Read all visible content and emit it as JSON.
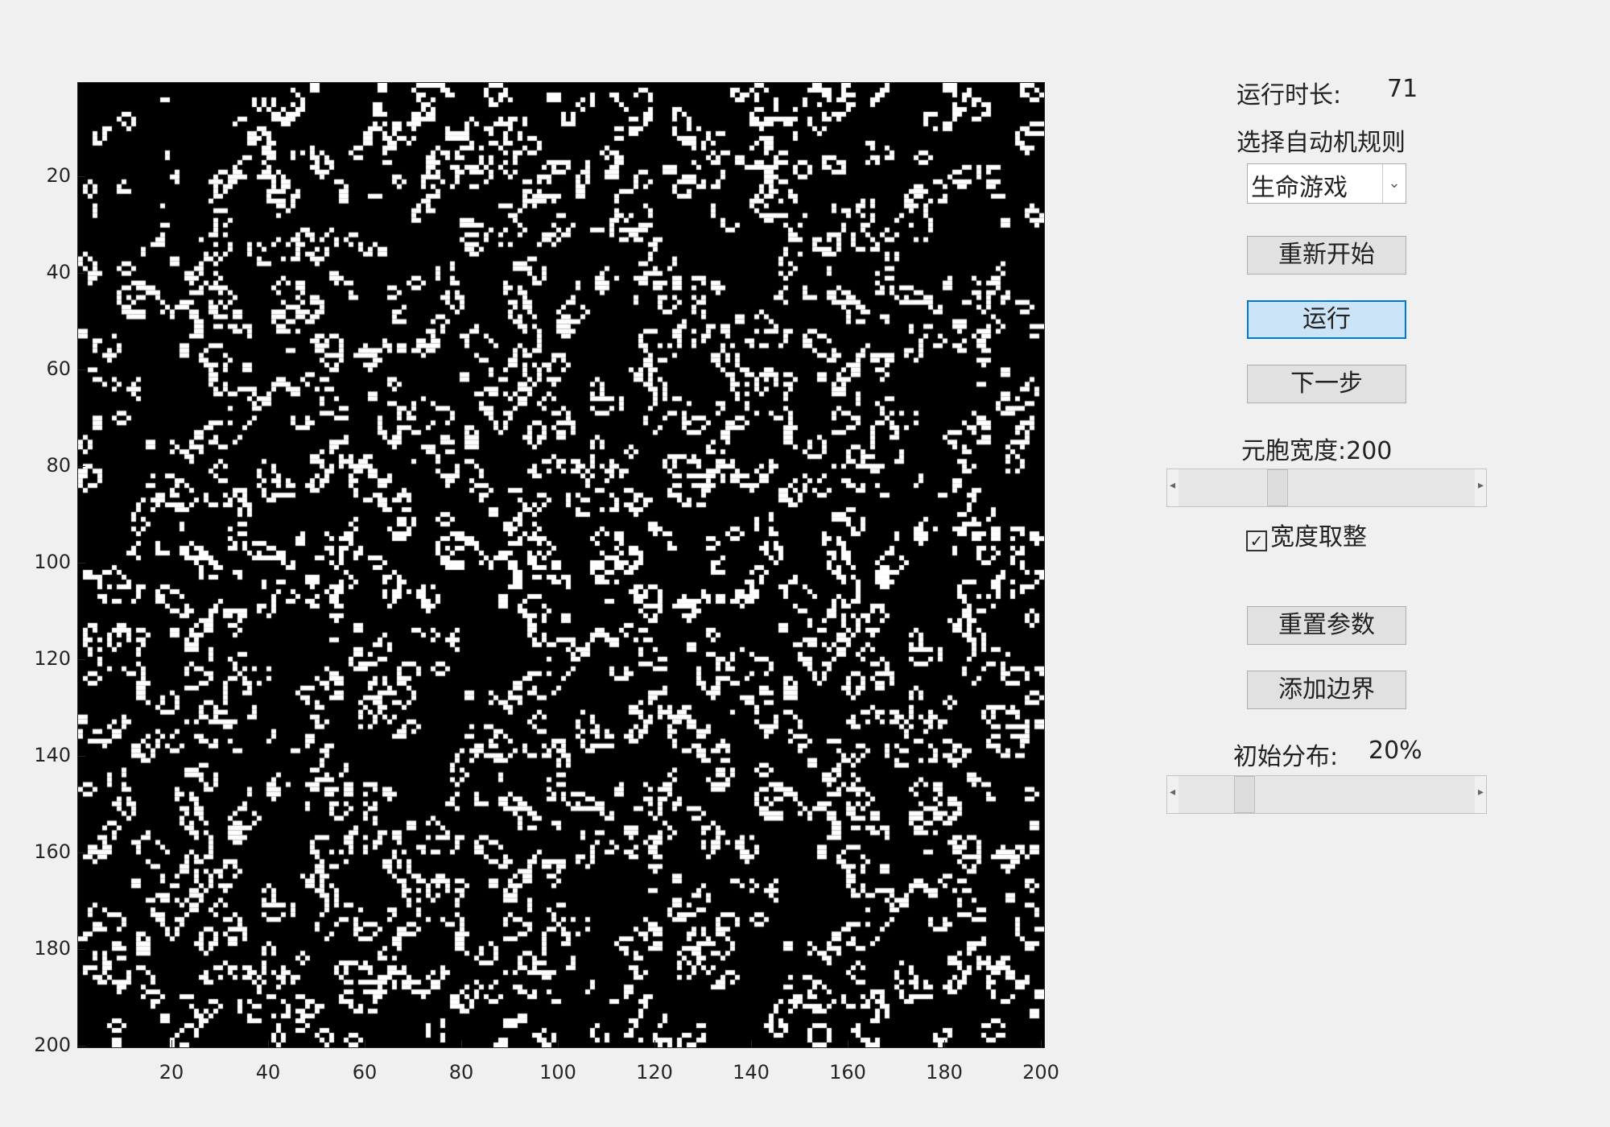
{
  "plot": {
    "y_ticks": [
      "20",
      "40",
      "60",
      "80",
      "100",
      "120",
      "140",
      "160",
      "180",
      "200"
    ],
    "x_ticks": [
      "20",
      "40",
      "60",
      "80",
      "100",
      "120",
      "140",
      "160",
      "180",
      "200"
    ],
    "grid_size": 200,
    "density": 0.2,
    "colors": {
      "alive": "#ffffff",
      "dead": "#000000"
    }
  },
  "panel": {
    "run_time_label": "运行时长:",
    "run_time_value": "71",
    "rule_label": "选择自动机规则",
    "rule_selected": "生命游戏",
    "restart_label": "重新开始",
    "run_label": "运行",
    "step_label": "下一步",
    "cell_width_label": "元胞宽度:200",
    "cell_width_fraction": 0.32,
    "round_width_label": "宽度取整",
    "round_width_checked": true,
    "reset_params_label": "重置参数",
    "add_border_label": "添加边界",
    "init_dist_label": "初始分布:",
    "init_dist_value": "20%",
    "init_dist_fraction": 0.2
  }
}
